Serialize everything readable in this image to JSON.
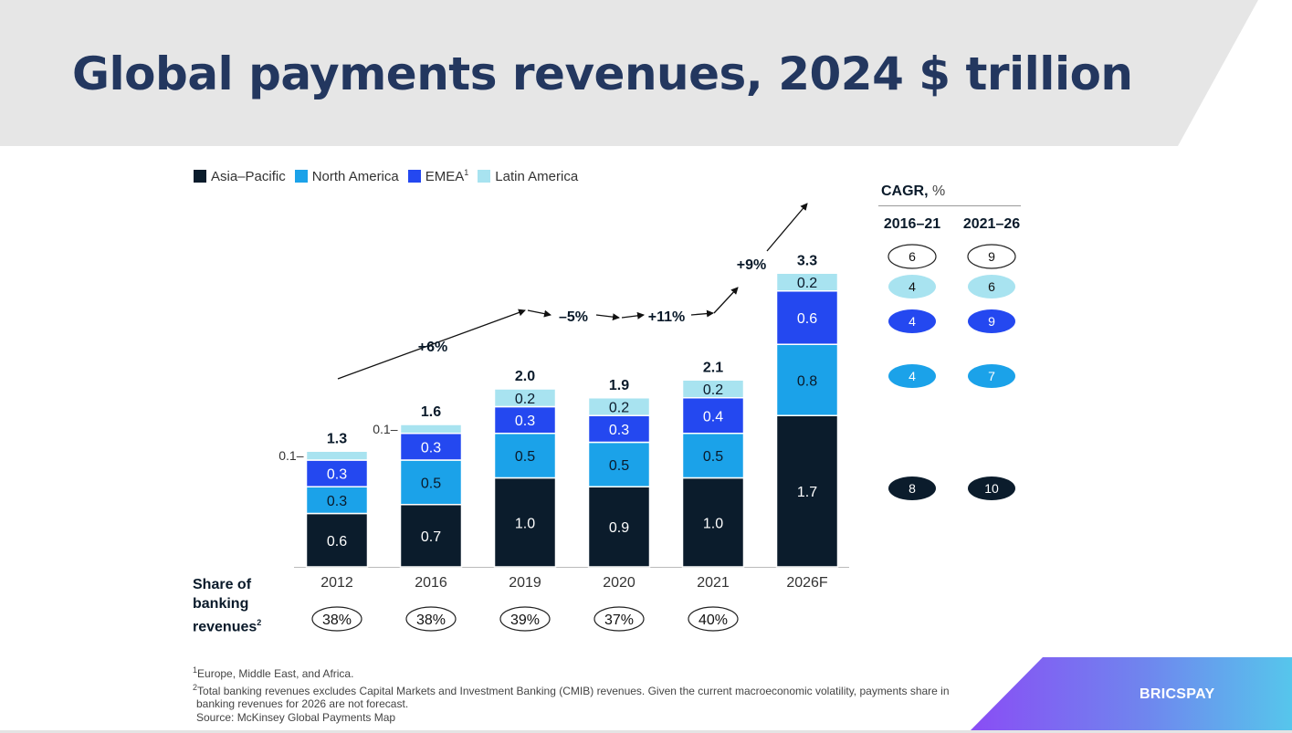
{
  "title": "Global payments revenues, 2024 $ trillion",
  "colors": {
    "asia_pacific": "#0b1c2c",
    "north_america": "#1ba2e9",
    "emea": "#2448f0",
    "latin_america": "#a8e3f0",
    "title_band": "#e6e6e6",
    "title_text": "#23375f"
  },
  "legend": {
    "asia_pacific": "Asia–Pacific",
    "north_america": "North America",
    "emea": "EMEA",
    "emea_sup": "1",
    "latin_america": "Latin America"
  },
  "chart_data": {
    "type": "bar",
    "stacked": true,
    "categories": [
      "2012",
      "2016",
      "2019",
      "2020",
      "2021",
      "2026F"
    ],
    "series": [
      {
        "name": "Asia–Pacific",
        "key": "asia_pacific",
        "values": [
          0.6,
          0.7,
          1.0,
          0.9,
          1.0,
          1.7
        ],
        "labels": [
          "0.6",
          "0.7",
          "1.0",
          "0.9",
          "1.0",
          "1.7"
        ]
      },
      {
        "name": "North America",
        "key": "north_america",
        "values": [
          0.3,
          0.5,
          0.5,
          0.5,
          0.5,
          0.8
        ],
        "labels": [
          "0.3",
          "0.5",
          "0.5",
          "0.5",
          "0.5",
          "0.8"
        ]
      },
      {
        "name": "EMEA",
        "key": "emea",
        "values": [
          0.3,
          0.3,
          0.3,
          0.3,
          0.4,
          0.6
        ],
        "labels": [
          "0.3",
          "0.3",
          "0.3",
          "0.3",
          "0.4",
          "0.6"
        ]
      },
      {
        "name": "Latin America",
        "key": "latin_america",
        "values": [
          0.1,
          0.1,
          0.2,
          0.2,
          0.2,
          0.2
        ],
        "labels": [
          "0.1",
          "0.1",
          "0.2",
          "0.2",
          "0.2",
          "0.2"
        ],
        "label_outside": [
          true,
          true,
          false,
          false,
          false,
          false
        ]
      }
    ],
    "totals": [
      "1.3",
      "1.6",
      "2.0",
      "1.9",
      "2.1",
      "3.3"
    ],
    "growth": [
      {
        "label": "+6%",
        "from": "2012",
        "to": "2019"
      },
      {
        "label": "–5%",
        "from": "2019",
        "to": "2020"
      },
      {
        "label": "+11%",
        "from": "2020",
        "to": "2021"
      },
      {
        "label": "+9%",
        "from": "2021",
        "to": "2026F"
      }
    ],
    "share_of_banking": [
      "38%",
      "38%",
      "39%",
      "37%",
      "40%",
      ""
    ],
    "cagr": {
      "title": "CAGR,",
      "unit": "%",
      "periods": [
        "2016–21",
        "2021–26"
      ],
      "rows": [
        {
          "key": "total",
          "values": [
            "6",
            "9"
          ]
        },
        {
          "key": "latin_america",
          "values": [
            "4",
            "6"
          ]
        },
        {
          "key": "emea",
          "values": [
            "4",
            "9"
          ]
        },
        {
          "key": "north_america",
          "values": [
            "4",
            "7"
          ]
        },
        {
          "key": "asia_pacific",
          "values": [
            "8",
            "10"
          ]
        }
      ]
    },
    "ylim": [
      0,
      3.5
    ]
  },
  "share_label": {
    "line1": "Share of",
    "line2": "banking",
    "line3": "revenues",
    "sup": "2"
  },
  "footnotes": {
    "fn1_sup": "1",
    "fn1": "Europe, Middle East, and Africa.",
    "fn2_sup": "2",
    "fn2a": "Total banking revenues excludes Capital Markets and Investment Banking (CMIB) revenues. Given the current macroeconomic volatility, payments share in",
    "fn2b": "banking revenues for 2026 are not forecast.",
    "source": "Source: McKinsey Global Payments Map"
  },
  "brand": "BRICSPAY"
}
